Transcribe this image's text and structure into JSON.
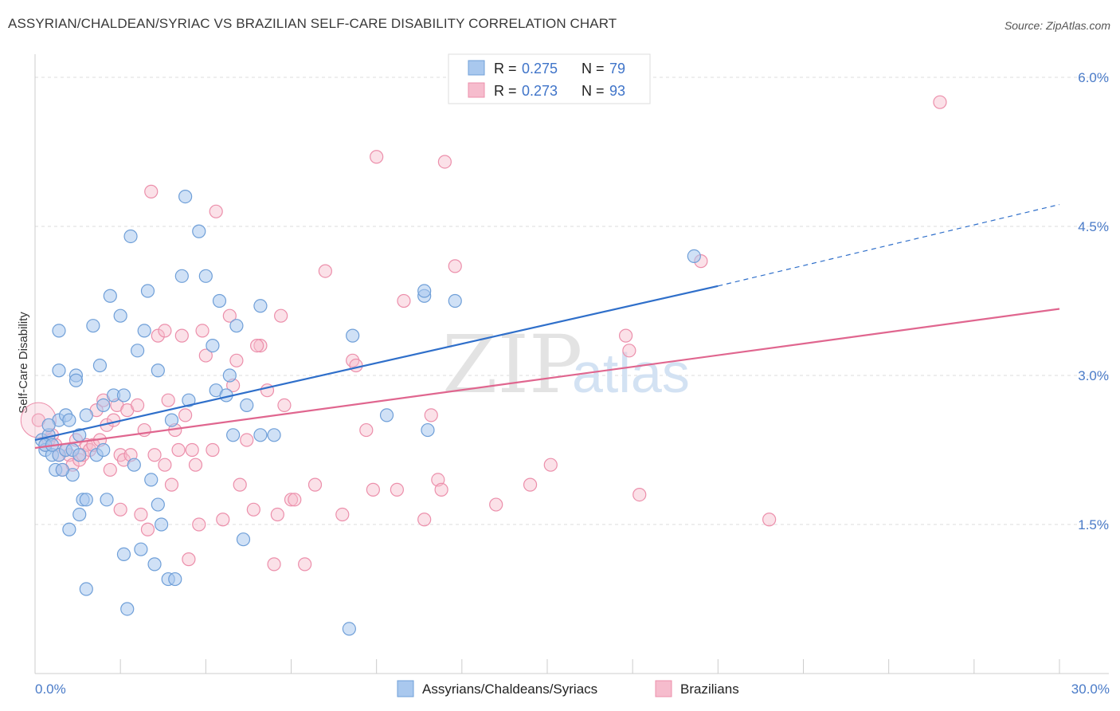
{
  "title": "ASSYRIAN/CHALDEAN/SYRIAC VS BRAZILIAN SELF-CARE DISABILITY CORRELATION CHART",
  "source": "Source: ZipAtlas.com",
  "watermark": {
    "zip": "ZIP",
    "atlas": "atlas"
  },
  "legend": {
    "rows": [
      {
        "r_label": "R =",
        "r_value": "0.275",
        "n_label": "N =",
        "n_value": "79"
      },
      {
        "r_label": "R =",
        "r_value": "0.273",
        "n_label": "N =",
        "n_value": "93"
      }
    ]
  },
  "colors": {
    "blue_fill": "#a9c8ee",
    "blue_stroke": "#6f9fd8",
    "blue_line": "#2f6fca",
    "pink_fill": "#f6bccd",
    "pink_stroke": "#ec8fab",
    "pink_line": "#e0668f",
    "grid": "#dddddd",
    "tick_text": "#4a7bc8"
  },
  "chart_data": {
    "type": "scatter",
    "title": "ASSYRIAN/CHALDEAN/SYRIAC VS BRAZILIAN SELF-CARE DISABILITY CORRELATION CHART",
    "xlabel": "",
    "ylabel": "Self-Care Disability",
    "xlim": [
      0,
      30
    ],
    "ylim": [
      0,
      6.0
    ],
    "x_ticks": [
      "0.0%",
      "30.0%"
    ],
    "y_ticks": [
      "1.5%",
      "3.0%",
      "4.5%",
      "6.0%"
    ],
    "y_tick_values": [
      1.5,
      3.0,
      4.5,
      6.0
    ],
    "grid": true,
    "legend_position": "top-center",
    "series": [
      {
        "name": "Assyrians/Chaldeans/Syriacs",
        "R": 0.275,
        "N": 79,
        "trend": {
          "x0": 0,
          "y0": 2.35,
          "x1": 20.0,
          "y1": 3.9,
          "dashed_to_x": 30,
          "dashed_to_y": 4.72
        },
        "points": [
          [
            0.2,
            2.35
          ],
          [
            0.3,
            2.25
          ],
          [
            0.4,
            2.4
          ],
          [
            0.5,
            2.2
          ],
          [
            0.6,
            2.05
          ],
          [
            0.7,
            2.2
          ],
          [
            0.7,
            2.55
          ],
          [
            0.9,
            2.25
          ],
          [
            0.3,
            2.3
          ],
          [
            0.5,
            2.3
          ],
          [
            0.7,
            3.05
          ],
          [
            0.7,
            3.45
          ],
          [
            0.9,
            2.6
          ],
          [
            1.1,
            2.0
          ],
          [
            1.1,
            2.25
          ],
          [
            1.2,
            3.0
          ],
          [
            1.2,
            2.95
          ],
          [
            1.3,
            2.4
          ],
          [
            1.3,
            2.2
          ],
          [
            1.0,
            1.45
          ],
          [
            1.3,
            1.6
          ],
          [
            1.4,
            1.75
          ],
          [
            1.5,
            1.75
          ],
          [
            1.5,
            2.6
          ],
          [
            1.5,
            0.85
          ],
          [
            1.7,
            3.5
          ],
          [
            1.8,
            2.2
          ],
          [
            1.9,
            3.1
          ],
          [
            2.0,
            2.7
          ],
          [
            2.1,
            1.75
          ],
          [
            2.2,
            3.8
          ],
          [
            2.3,
            2.8
          ],
          [
            2.5,
            3.6
          ],
          [
            2.6,
            1.2
          ],
          [
            2.6,
            2.8
          ],
          [
            2.7,
            0.65
          ],
          [
            2.8,
            4.4
          ],
          [
            2.9,
            2.1
          ],
          [
            3.0,
            3.25
          ],
          [
            3.1,
            1.25
          ],
          [
            3.2,
            3.45
          ],
          [
            3.3,
            3.85
          ],
          [
            3.4,
            1.95
          ],
          [
            3.5,
            1.1
          ],
          [
            3.6,
            1.7
          ],
          [
            3.7,
            1.5
          ],
          [
            3.9,
            0.95
          ],
          [
            4.0,
            2.55
          ],
          [
            4.1,
            0.95
          ],
          [
            4.3,
            4.0
          ],
          [
            4.4,
            4.8
          ],
          [
            4.5,
            2.75
          ],
          [
            4.8,
            4.45
          ],
          [
            5.0,
            4.0
          ],
          [
            5.2,
            3.3
          ],
          [
            5.3,
            2.85
          ],
          [
            5.4,
            3.75
          ],
          [
            5.6,
            2.8
          ],
          [
            5.7,
            3.0
          ],
          [
            5.8,
            2.4
          ],
          [
            5.9,
            3.5
          ],
          [
            6.1,
            1.35
          ],
          [
            6.2,
            2.7
          ],
          [
            6.6,
            2.4
          ],
          [
            6.6,
            3.7
          ],
          [
            7.0,
            2.4
          ],
          [
            9.2,
            0.45
          ],
          [
            9.3,
            3.4
          ],
          [
            10.3,
            2.6
          ],
          [
            11.4,
            3.8
          ],
          [
            11.4,
            3.85
          ],
          [
            11.5,
            2.45
          ],
          [
            12.3,
            3.75
          ],
          [
            19.3,
            4.2
          ],
          [
            0.4,
            2.5
          ],
          [
            1.0,
            2.55
          ],
          [
            2.0,
            2.25
          ],
          [
            0.8,
            2.05
          ],
          [
            3.6,
            3.05
          ]
        ]
      },
      {
        "name": "Brazilians",
        "R": 0.273,
        "N": 93,
        "trend": {
          "x0": 0,
          "y0": 2.27,
          "x1": 30,
          "y1": 3.67
        },
        "points": [
          [
            0.1,
            2.55
          ],
          [
            0.3,
            2.3
          ],
          [
            0.4,
            2.35
          ],
          [
            0.5,
            2.4
          ],
          [
            0.6,
            2.3
          ],
          [
            0.7,
            2.2
          ],
          [
            0.8,
            2.05
          ],
          [
            0.9,
            2.25
          ],
          [
            1.0,
            2.2
          ],
          [
            1.1,
            2.1
          ],
          [
            1.2,
            2.35
          ],
          [
            1.3,
            2.15
          ],
          [
            1.4,
            2.2
          ],
          [
            1.5,
            2.3
          ],
          [
            1.6,
            2.25
          ],
          [
            1.7,
            2.3
          ],
          [
            1.8,
            2.65
          ],
          [
            1.9,
            2.35
          ],
          [
            2.0,
            2.75
          ],
          [
            2.1,
            2.5
          ],
          [
            2.2,
            2.05
          ],
          [
            2.3,
            2.55
          ],
          [
            2.4,
            2.7
          ],
          [
            2.5,
            2.2
          ],
          [
            2.6,
            2.15
          ],
          [
            2.7,
            2.65
          ],
          [
            2.8,
            2.2
          ],
          [
            3.0,
            2.7
          ],
          [
            3.1,
            1.6
          ],
          [
            3.2,
            2.45
          ],
          [
            3.3,
            1.45
          ],
          [
            3.4,
            4.85
          ],
          [
            3.5,
            2.2
          ],
          [
            3.6,
            3.4
          ],
          [
            3.8,
            2.1
          ],
          [
            3.9,
            2.75
          ],
          [
            4.0,
            1.9
          ],
          [
            4.1,
            2.45
          ],
          [
            4.2,
            2.25
          ],
          [
            4.3,
            3.4
          ],
          [
            4.4,
            2.6
          ],
          [
            4.5,
            1.15
          ],
          [
            4.6,
            2.25
          ],
          [
            4.7,
            2.1
          ],
          [
            4.8,
            1.5
          ],
          [
            4.9,
            3.45
          ],
          [
            5.0,
            3.2
          ],
          [
            5.2,
            2.25
          ],
          [
            5.3,
            4.65
          ],
          [
            5.5,
            1.55
          ],
          [
            5.7,
            3.6
          ],
          [
            5.8,
            2.9
          ],
          [
            5.9,
            3.15
          ],
          [
            6.0,
            1.9
          ],
          [
            6.2,
            2.35
          ],
          [
            6.4,
            1.65
          ],
          [
            6.6,
            3.3
          ],
          [
            6.8,
            2.85
          ],
          [
            7.0,
            1.1
          ],
          [
            7.1,
            1.6
          ],
          [
            7.2,
            3.6
          ],
          [
            7.3,
            2.7
          ],
          [
            7.5,
            1.75
          ],
          [
            7.6,
            1.75
          ],
          [
            7.9,
            1.1
          ],
          [
            8.2,
            1.9
          ],
          [
            8.5,
            4.05
          ],
          [
            9.0,
            1.6
          ],
          [
            9.3,
            3.15
          ],
          [
            9.7,
            2.45
          ],
          [
            9.9,
            1.85
          ],
          [
            10.0,
            5.2
          ],
          [
            10.6,
            1.85
          ],
          [
            10.8,
            3.75
          ],
          [
            11.4,
            1.55
          ],
          [
            11.8,
            1.95
          ],
          [
            11.9,
            1.85
          ],
          [
            12.0,
            5.15
          ],
          [
            12.3,
            4.1
          ],
          [
            13.5,
            1.7
          ],
          [
            14.5,
            1.9
          ],
          [
            15.1,
            2.1
          ],
          [
            17.3,
            3.4
          ],
          [
            17.4,
            3.25
          ],
          [
            17.7,
            1.8
          ],
          [
            19.5,
            4.15
          ],
          [
            21.5,
            1.55
          ],
          [
            26.5,
            5.75
          ],
          [
            2.5,
            1.65
          ],
          [
            3.8,
            3.45
          ],
          [
            6.5,
            3.3
          ],
          [
            9.4,
            3.1
          ],
          [
            11.6,
            2.6
          ]
        ]
      }
    ]
  },
  "bottom_legend": {
    "items": [
      "Assyrians/Chaldeans/Syriacs",
      "Brazilians"
    ]
  }
}
